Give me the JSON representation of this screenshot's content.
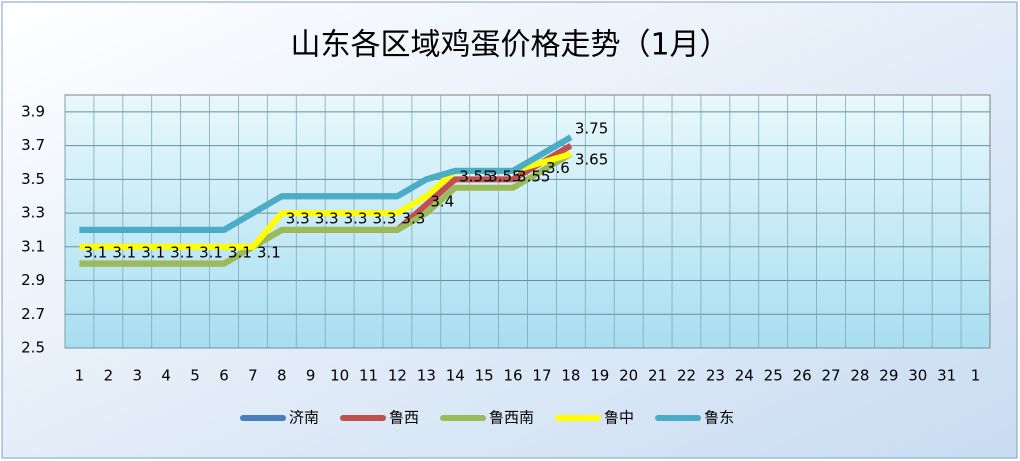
{
  "chart_data": {
    "type": "line",
    "title": "山东各区域鸡蛋价格走势（1月）",
    "categories": [
      "1",
      "2",
      "3",
      "4",
      "5",
      "6",
      "7",
      "8",
      "9",
      "10",
      "11",
      "12",
      "13",
      "14",
      "15",
      "16",
      "17",
      "18",
      "19",
      "20",
      "21",
      "22",
      "23",
      "24",
      "25",
      "26",
      "27",
      "28",
      "29",
      "30",
      "31",
      "1"
    ],
    "ylim": [
      2.5,
      4.0
    ],
    "yticks": [
      2.5,
      2.7,
      2.9,
      3.1,
      3.3,
      3.5,
      3.7,
      3.9
    ],
    "grid": true,
    "series": [
      {
        "name": "济南",
        "color": "#4a7ebb",
        "values": [
          3.2,
          3.2,
          3.2,
          3.2,
          3.2,
          3.2,
          3.3,
          3.4,
          3.4,
          3.4,
          3.4,
          3.4,
          3.5,
          3.55,
          3.55,
          3.55,
          3.65,
          3.75,
          null,
          null,
          null,
          null,
          null,
          null,
          null,
          null,
          null,
          null,
          null,
          null,
          null,
          null
        ]
      },
      {
        "name": "鲁西",
        "color": "#c0504d",
        "values": [
          3.0,
          3.0,
          3.0,
          3.0,
          3.0,
          3.0,
          3.1,
          3.2,
          3.2,
          3.2,
          3.2,
          3.2,
          3.35,
          3.5,
          3.5,
          3.5,
          3.6,
          3.7,
          null,
          null,
          null,
          null,
          null,
          null,
          null,
          null,
          null,
          null,
          null,
          null,
          null,
          null
        ]
      },
      {
        "name": "鲁西南",
        "color": "#9bbb59",
        "values": [
          3.0,
          3.0,
          3.0,
          3.0,
          3.0,
          3.0,
          3.1,
          3.2,
          3.2,
          3.2,
          3.2,
          3.2,
          3.3,
          3.45,
          3.45,
          3.45,
          3.55,
          3.65,
          null,
          null,
          null,
          null,
          null,
          null,
          null,
          null,
          null,
          null,
          null,
          null,
          null,
          null
        ]
      },
      {
        "name": "鲁中",
        "color": "#ffff00",
        "values": [
          3.1,
          3.1,
          3.1,
          3.1,
          3.1,
          3.1,
          3.1,
          3.3,
          3.3,
          3.3,
          3.3,
          3.3,
          3.4,
          3.55,
          3.55,
          3.55,
          3.6,
          3.65,
          null,
          null,
          null,
          null,
          null,
          null,
          null,
          null,
          null,
          null,
          null,
          null,
          null,
          null
        ],
        "value_labels": [
          "3.1",
          "3.1",
          "3.1",
          "3.1",
          "3.1",
          "3.1",
          "3.1",
          "3.3",
          "3.3",
          "3.3",
          "3.3",
          "3.3",
          "3.4",
          "3.55",
          "3.55",
          "3.55",
          "3.6",
          "3.65",
          null,
          null,
          null,
          null,
          null,
          null,
          null,
          null,
          null,
          null,
          null,
          null,
          null,
          null
        ]
      },
      {
        "name": "鲁东",
        "color": "#4bacc6",
        "values": [
          3.2,
          3.2,
          3.2,
          3.2,
          3.2,
          3.2,
          3.3,
          3.4,
          3.4,
          3.4,
          3.4,
          3.4,
          3.5,
          3.55,
          3.55,
          3.55,
          3.65,
          3.75,
          null,
          null,
          null,
          null,
          null,
          null,
          null,
          null,
          null,
          null,
          null,
          null,
          null,
          null
        ],
        "value_labels": [
          null,
          null,
          null,
          null,
          null,
          null,
          null,
          null,
          null,
          null,
          null,
          null,
          null,
          null,
          null,
          null,
          null,
          "3.75",
          null,
          null,
          null,
          null,
          null,
          null,
          null,
          null,
          null,
          null,
          null,
          null,
          null,
          null
        ]
      }
    ]
  }
}
